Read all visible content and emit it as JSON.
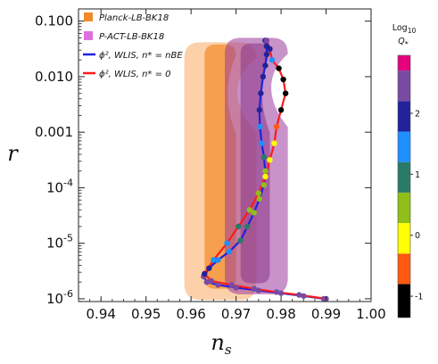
{
  "chart_data": {
    "type": "scatter",
    "xlabel": "n",
    "xlabel_sub": "s",
    "ylabel": "r",
    "xlim": [
      0.935,
      1.0
    ],
    "ylim_log10": [
      -6.05,
      -0.78
    ],
    "y_scale": "log",
    "x_ticks": [
      {
        "v": 0.94,
        "label": "0.94"
      },
      {
        "v": 0.95,
        "label": "0.95"
      },
      {
        "v": 0.96,
        "label": "0.96"
      },
      {
        "v": 0.97,
        "label": "0.97"
      },
      {
        "v": 0.98,
        "label": "0.98"
      },
      {
        "v": 0.99,
        "label": "0.99"
      },
      {
        "v": 1.0,
        "label": "1.00"
      }
    ],
    "y_ticks": [
      {
        "exp": -1,
        "label": "0.100"
      },
      {
        "exp": -2,
        "label": "0.010"
      },
      {
        "exp": -3,
        "label": "0.001"
      },
      {
        "exp": -4,
        "label": "10",
        "sup": "-4"
      },
      {
        "exp": -5,
        "label": "10",
        "sup": "-5"
      },
      {
        "exp": -6,
        "label": "10",
        "sup": "-6"
      }
    ],
    "legend": [
      {
        "label": "Planck-LB-BK18",
        "kind": "swatch",
        "color": "#f08a2a"
      },
      {
        "label": "P-ACT-LB-BK18",
        "kind": "swatch",
        "color": "#e070e0"
      },
      {
        "label": "ϕ², WLIS, n* = nBE",
        "kind": "line",
        "color": "#1f22e0"
      },
      {
        "label": "ϕ², WLIS, n* = 0",
        "kind": "line",
        "color": "#ff1a1a"
      }
    ],
    "regions": [
      {
        "name": "Planck-LB-BK18 (2σ)",
        "color": "#fbc89a",
        "opacity": 0.85,
        "x_left": 0.9585,
        "x_right": 0.9745,
        "top_log": -1.38,
        "bottom_log": -6.02
      },
      {
        "name": "Planck-LB-BK18 (1σ)",
        "color": "#f59a45",
        "opacity": 0.9,
        "x_left": 0.963,
        "x_right": 0.97,
        "top_log": -1.42,
        "bottom_log": -5.82
      },
      {
        "name": "P-ACT-LB-BK18 (2σ)",
        "color": "#9b3a9b",
        "opacity": 0.55,
        "x_left": 0.9675,
        "x_right": 0.9815,
        "top_log": -1.3,
        "bottom_log": -5.92
      },
      {
        "name": "P-ACT-LB-BK18 (1σ)",
        "color": "#8a3388",
        "opacity": 0.55,
        "x_left": 0.971,
        "x_right": 0.9775,
        "top_log": -1.4,
        "bottom_log": -5.72
      }
    ],
    "series": [
      {
        "name": "ϕ², WLIS, n* = nBE",
        "color": "#1f22e0",
        "points": [
          [
            0.9765,
            -1.35,
            2.1
          ],
          [
            0.9768,
            -1.45,
            2.1
          ],
          [
            0.9768,
            -1.6,
            2.0
          ],
          [
            0.9765,
            -1.8,
            2.0
          ],
          [
            0.976,
            -2.0,
            1.9
          ],
          [
            0.9755,
            -2.3,
            1.8
          ],
          [
            0.9752,
            -2.6,
            1.7
          ],
          [
            0.9753,
            -2.9,
            1.6
          ],
          [
            0.9757,
            -3.2,
            1.2
          ],
          [
            0.9762,
            -3.45,
            0.8
          ],
          [
            0.9765,
            -3.7,
            0.5
          ],
          [
            0.9762,
            -3.95,
            0.2
          ],
          [
            0.9752,
            -4.2,
            0.4
          ],
          [
            0.974,
            -4.45,
            0.6
          ],
          [
            0.9725,
            -4.7,
            0.8
          ],
          [
            0.971,
            -4.95,
            1.0
          ],
          [
            0.9685,
            -5.15,
            1.2
          ],
          [
            0.966,
            -5.3,
            1.5
          ],
          [
            0.964,
            -5.45,
            1.8
          ],
          [
            0.9628,
            -5.6,
            2.2
          ],
          [
            0.9635,
            -5.7,
            2.3
          ],
          [
            0.966,
            -5.75,
            2.4
          ],
          [
            0.97,
            -5.8,
            2.4
          ],
          [
            0.975,
            -5.85,
            2.5
          ],
          [
            0.98,
            -5.9,
            2.5
          ],
          [
            0.985,
            -5.95,
            2.6
          ],
          [
            0.9895,
            -6.0,
            2.6
          ]
        ]
      },
      {
        "name": "ϕ², WLIS, n* = 0",
        "color": "#ff1a1a",
        "points": [
          [
            0.9768,
            -1.35,
            2.2
          ],
          [
            0.9775,
            -1.5,
            2.0
          ],
          [
            0.978,
            -1.7,
            1.4
          ],
          [
            0.9795,
            -1.85,
            -1.0
          ],
          [
            0.9805,
            -2.05,
            -1.0
          ],
          [
            0.981,
            -2.3,
            -1.0
          ],
          [
            0.98,
            -2.6,
            -0.9
          ],
          [
            0.979,
            -2.9,
            -0.5
          ],
          [
            0.9785,
            -3.2,
            -0.2
          ],
          [
            0.9775,
            -3.5,
            0.0
          ],
          [
            0.9765,
            -3.8,
            0.1
          ],
          [
            0.975,
            -4.1,
            0.3
          ],
          [
            0.973,
            -4.4,
            0.6
          ],
          [
            0.9705,
            -4.7,
            0.9
          ],
          [
            0.968,
            -5.0,
            1.2
          ],
          [
            0.965,
            -5.3,
            1.6
          ],
          [
            0.963,
            -5.55,
            2.0
          ],
          [
            0.9645,
            -5.68,
            2.3
          ],
          [
            0.969,
            -5.75,
            2.4
          ],
          [
            0.974,
            -5.82,
            2.5
          ],
          [
            0.979,
            -5.88,
            2.5
          ],
          [
            0.984,
            -5.93,
            2.6
          ],
          [
            0.99,
            -6.0,
            2.6
          ]
        ]
      }
    ],
    "colorbar": {
      "title_line1": "Log",
      "title_sub": "10",
      "title_line2": "Q",
      "title_line2_sub": "*",
      "range": [
        -1.35,
        2.95
      ],
      "bands": [
        {
          "lo": -1.35,
          "hi": -0.8,
          "color": "#000000"
        },
        {
          "lo": -0.8,
          "hi": -0.3,
          "color": "#ff5a10"
        },
        {
          "lo": -0.3,
          "hi": 0.2,
          "color": "#ffff00"
        },
        {
          "lo": 0.2,
          "hi": 0.7,
          "color": "#8fbf18"
        },
        {
          "lo": 0.7,
          "hi": 1.2,
          "color": "#2a7a6a"
        },
        {
          "lo": 1.2,
          "hi": 1.7,
          "color": "#1e90ff"
        },
        {
          "lo": 1.7,
          "hi": 2.2,
          "color": "#22229a"
        },
        {
          "lo": 2.2,
          "hi": 2.7,
          "color": "#7a4aa2"
        },
        {
          "lo": 2.7,
          "hi": 2.95,
          "color": "#e5007e"
        }
      ],
      "ticks": [
        {
          "v": -1,
          "label": "-1"
        },
        {
          "v": 0,
          "label": "0"
        },
        {
          "v": 1,
          "label": "1"
        },
        {
          "v": 2,
          "label": "2"
        }
      ]
    }
  }
}
